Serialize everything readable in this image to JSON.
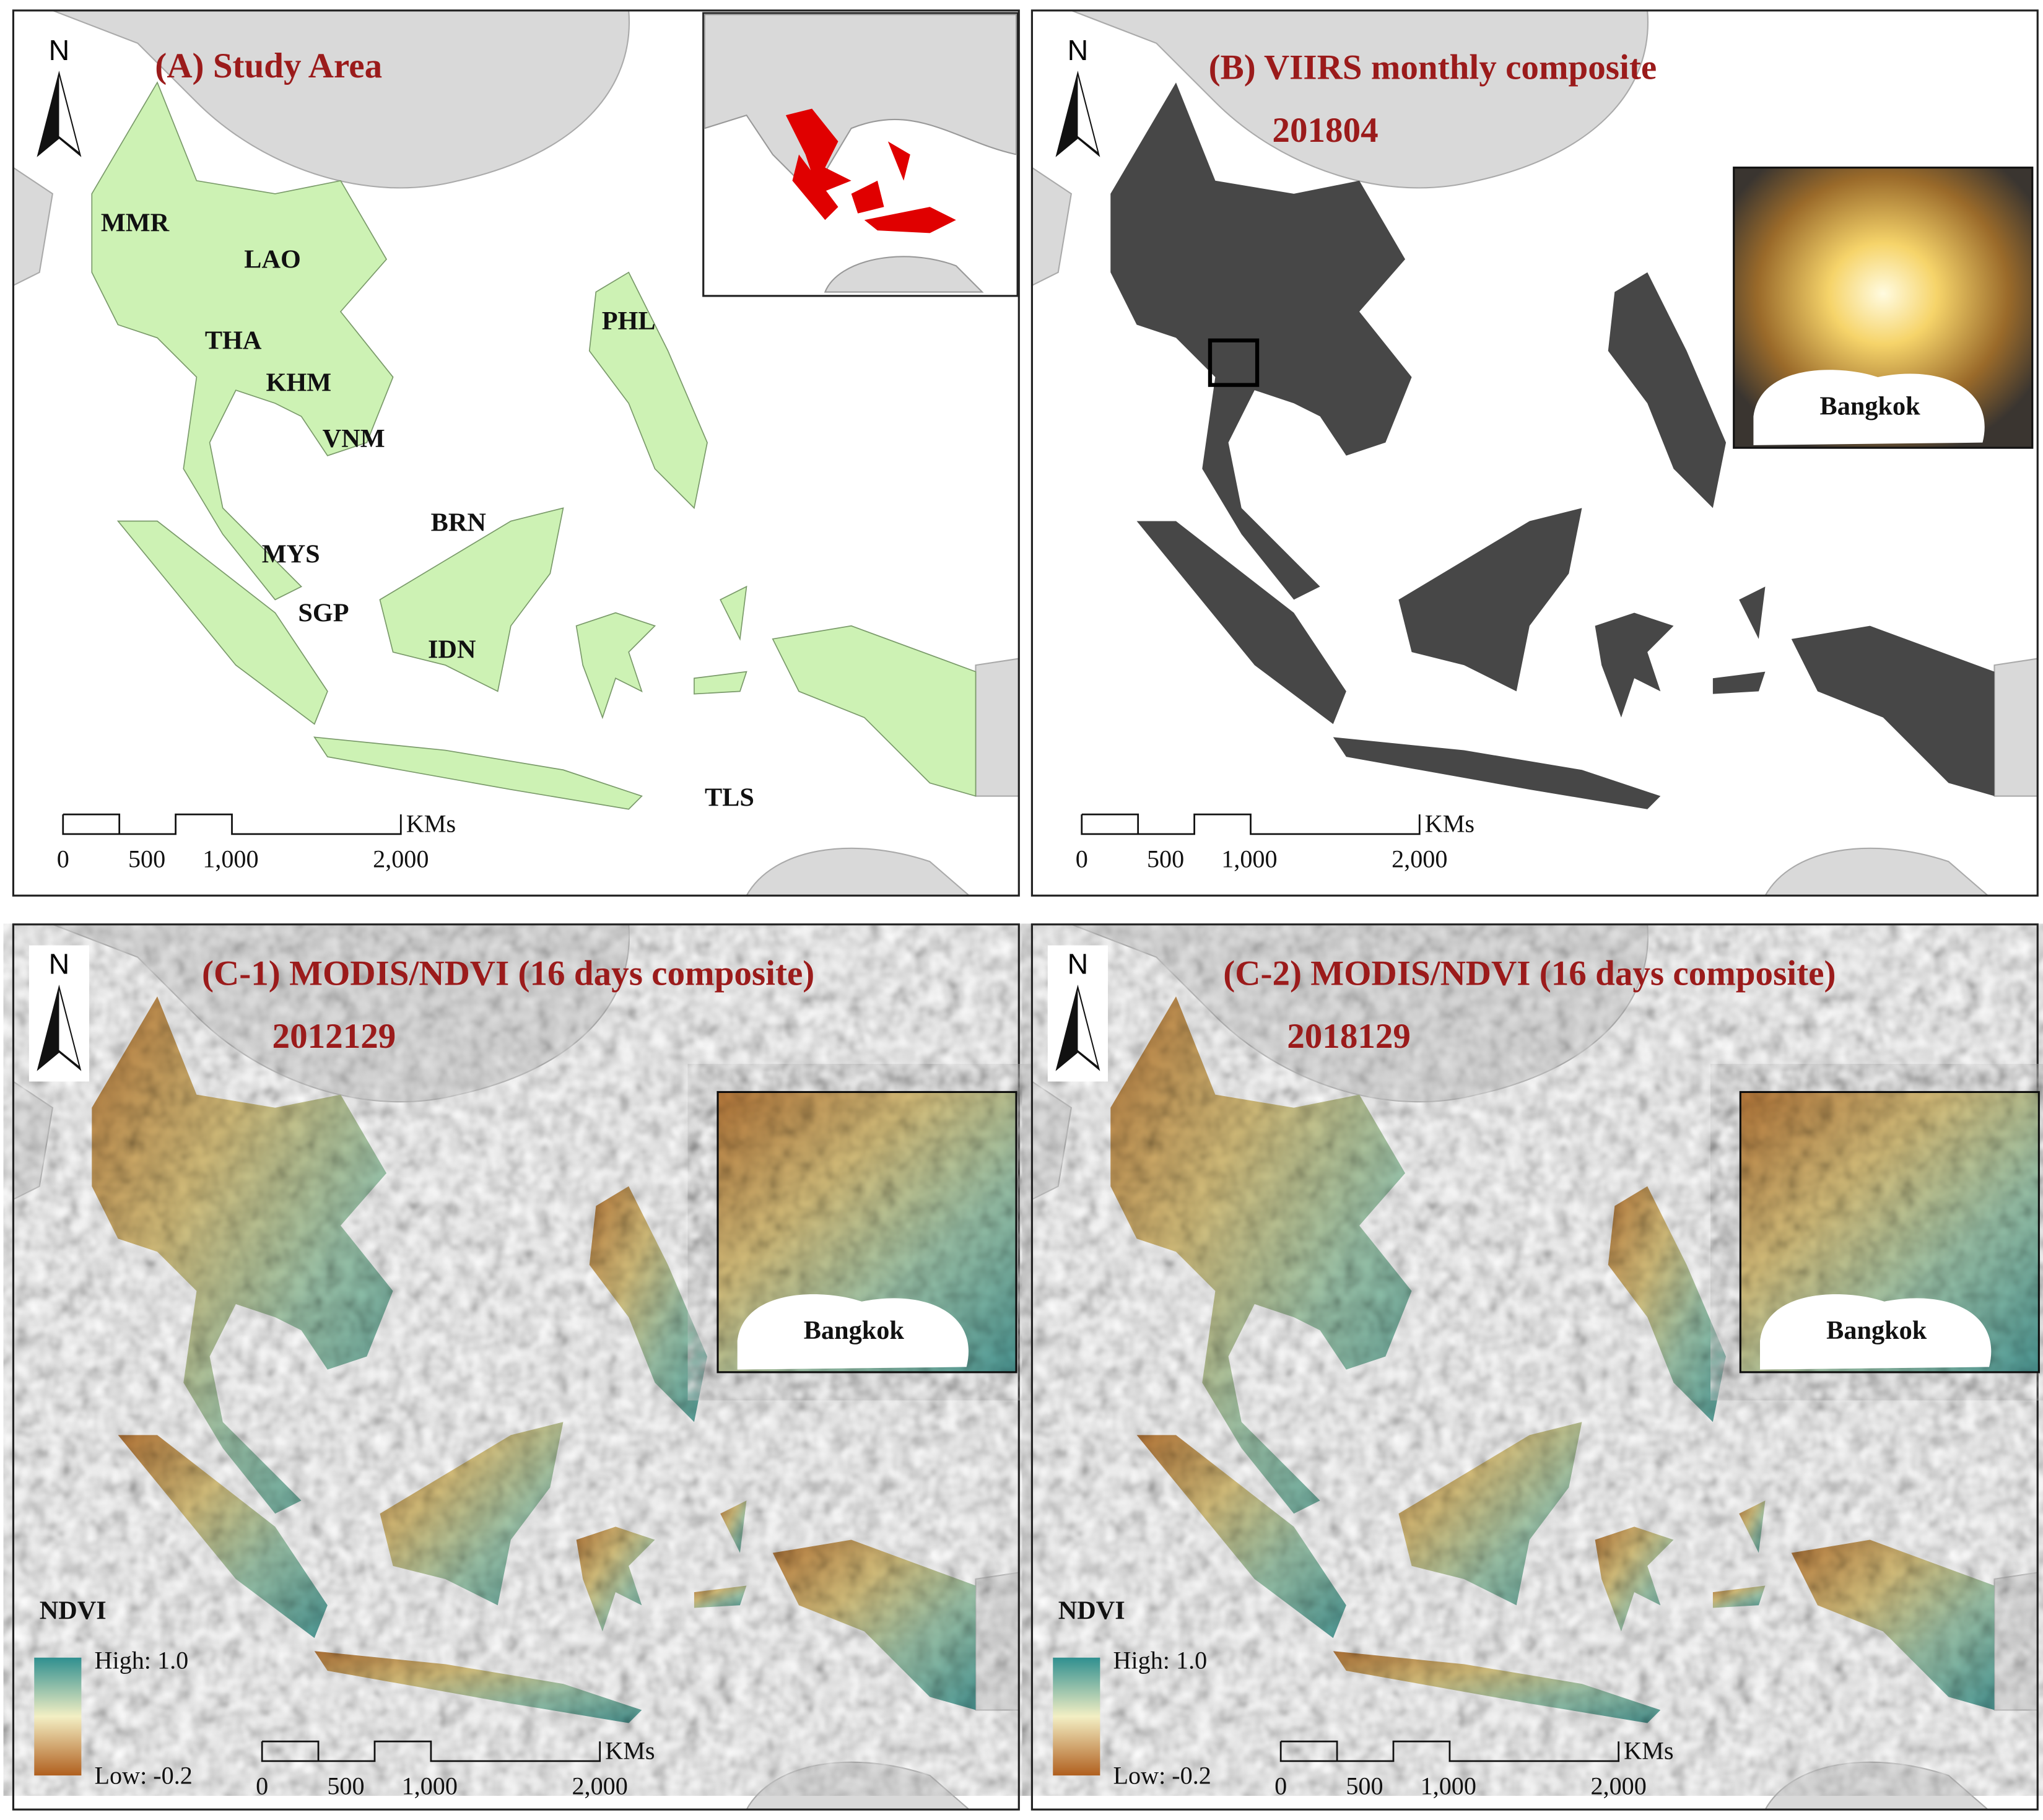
{
  "panels": [
    {
      "title": "(A) Study Area",
      "north": "N",
      "labels": [
        "MMR",
        "LAO",
        "THA",
        "KHM",
        "VNM",
        "PHL",
        "BRN",
        "MYS",
        "SGP",
        "IDN",
        "TLS"
      ],
      "scale": {
        "ticks": [
          "0",
          "500",
          "1,000",
          "2,000"
        ],
        "unit": "KMs"
      }
    },
    {
      "title": "(B) VIIRS monthly composite",
      "subtitle": "201804",
      "north": "N",
      "inset_label": "Bangkok",
      "scale": {
        "ticks": [
          "0",
          "500",
          "1,000",
          "2,000"
        ],
        "unit": "KMs"
      }
    },
    {
      "title": "(C-1) MODIS/NDVI (16 days composite)",
      "subtitle": "2012129",
      "north": "N",
      "inset_label": "Bangkok",
      "legend": {
        "title": "NDVI",
        "high": "High: 1.0",
        "low": "Low: -0.2"
      },
      "scale": {
        "ticks": [
          "0",
          "500",
          "1,000",
          "2,000"
        ],
        "unit": "KMs"
      }
    },
    {
      "title": "(C-2) MODIS/NDVI (16 days composite)",
      "subtitle": "2018129",
      "north": "N",
      "inset_label": "Bangkok",
      "legend": {
        "title": "NDVI",
        "high": "High: 1.0",
        "low": "Low: -0.2"
      },
      "scale": {
        "ticks": [
          "0",
          "500",
          "1,000",
          "2,000"
        ],
        "unit": "KMs"
      }
    }
  ]
}
